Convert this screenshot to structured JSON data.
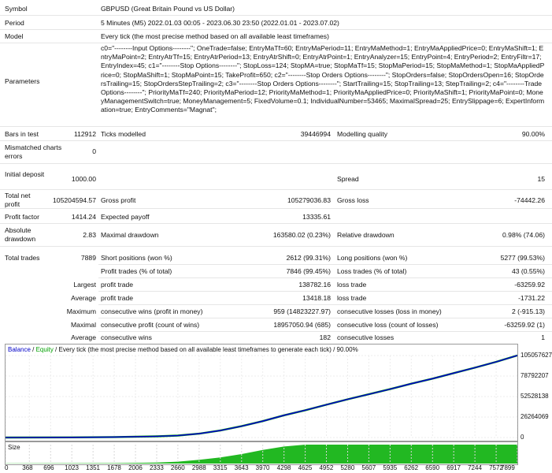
{
  "summary": {
    "symbol_label": "Symbol",
    "symbol_value": "GBPUSD (Great Britain Pound vs US Dollar)",
    "period_label": "Period",
    "period_value": "5 Minutes (M5) 2022.01.03 00:05 - 2023.06.30 23:50 (2022.01.01 - 2023.07.02)",
    "model_label": "Model",
    "model_value": "Every tick (the most precise method based on all available least timeframes)",
    "parameters_label": "Parameters",
    "parameters_value": "c0=\"--------Input Options--------\"; OneTrade=false; EntryMaTf=60; EntryMaPeriod=11; EntryMaMethod=1; EntryMaAppliedPrice=0; EntryMaShift=1; EntryMaPoint=2; EntryAtrTf=15; EntryAtrPeriod=13; EntryAtrShift=0; EntryAtrPoint=1; EntryAnalyzer=15; EntryPoint=4; EntryPeriod=2; EntryFiltr=17; EntryIndex=45; c1=\"--------Stop Options--------\"; StopLoss=124; StopMA=true; StopMaTf=15; StopMaPeriod=15; StopMaMethod=1; StopMaAppliedPrice=0; StopMaShift=1; StopMaPoint=15; TakeProfit=650; c2=\"--------Stop Orders Options--------\"; StopOrders=false; StopOrdersOpen=16; StopOrdersTrailing=15; StopOrdersStepTrailing=2; c3=\"--------Stop Orders Options--------\"; StartTrailing=15; StopTrailing=13; StepTrailing=2; c4=\"--------Trade Options--------\"; PriorityMaTf=240; PriorityMaPeriod=12; PriorityMaMethod=1; PriorityMaAppliedPrice=0; PriorityMaShift=1; PriorityMaPoint=0; MoneyManagementSwitch=true; MoneyManagement=5; FixedVolume=0.1; IndividualNumber=53465; MaximalSpread=25; EntrySlippage=6; ExpertInformation=true; EntryComments=\"Magnat\";"
  },
  "stats": {
    "bars_label": "Bars in test",
    "bars_value": "112912",
    "ticks_label": "Ticks modelled",
    "ticks_value": "39446994",
    "quality_label": "Modelling quality",
    "quality_value": "90.00%",
    "mismatch_label": "Mismatched charts errors",
    "mismatch_value": "0",
    "deposit_label": "Initial deposit",
    "deposit_value": "1000.00",
    "spread_label": "Spread",
    "spread_value": "15",
    "netprofit_label": "Total net profit",
    "netprofit_value": "105204594.57",
    "grossprofit_label": "Gross profit",
    "grossprofit_value": "105279036.83",
    "grossloss_label": "Gross loss",
    "grossloss_value": "-74442.26",
    "pf_label": "Profit factor",
    "pf_value": "1414.24",
    "payoff_label": "Expected payoff",
    "payoff_value": "13335.61",
    "absdd_label": "Absolute drawdown",
    "absdd_value": "2.83",
    "maxdd_label": "Maximal drawdown",
    "maxdd_value": "163580.02 (0.23%)",
    "reldd_label": "Relative drawdown",
    "reldd_value": "0.98% (74.06)",
    "trades_label": "Total trades",
    "trades_value": "7889",
    "short_label": "Short positions (won %)",
    "short_value": "2612 (99.31%)",
    "long_label": "Long positions (won %)",
    "long_value": "5277 (99.53%)",
    "profittrades_label": "Profit trades (% of total)",
    "profittrades_value": "7846 (99.45%)",
    "losstrades_label": "Loss trades (% of total)",
    "losstrades_value": "43 (0.55%)",
    "largest_label": "Largest",
    "largest_profit_label": "profit trade",
    "largest_profit_value": "138782.16",
    "largest_loss_label": "loss trade",
    "largest_loss_value": "-63259.92",
    "average_label": "Average",
    "average_profit_label": "profit trade",
    "average_profit_value": "13418.18",
    "average_loss_label": "loss trade",
    "average_loss_value": "-1731.22",
    "maximum_label": "Maximum",
    "maxwins_label": "consecutive wins (profit in money)",
    "maxwins_value": "959 (14823227.97)",
    "maxlosses_label": "consecutive losses (loss in money)",
    "maxlosses_value": "2 (-915.13)",
    "maximal_label": "Maximal",
    "maxprofit_label": "consecutive profit (count of wins)",
    "maxprofit_value": "18957050.94 (685)",
    "maxloss_label": "consecutive loss (count of losses)",
    "maxloss_value": "-63259.92 (1)",
    "avg2_label": "Average",
    "avgwins_label": "consecutive wins",
    "avgwins_value": "182",
    "avglosses_label": "consecutive losses",
    "avglosses_value": "1"
  },
  "chart": {
    "legend_balance": "Balance",
    "legend_sep1": " / ",
    "legend_equity": "Equity",
    "legend_rest": " / Every tick (the most precise method based on all available least timeframes to generate each tick) / 90.00%",
    "balance_color": "#0000c8",
    "equity_color": "#00a000",
    "size_label": "Size",
    "size_color": "#22b822",
    "yticks": [
      "105057627",
      "78792207",
      "52528138",
      "26264069",
      "0"
    ],
    "xticks": [
      "0",
      "368",
      "696",
      "1023",
      "1351",
      "1678",
      "2006",
      "2333",
      "2660",
      "2988",
      "3315",
      "3643",
      "3970",
      "4298",
      "4625",
      "4952",
      "5280",
      "5607",
      "5935",
      "6262",
      "6590",
      "6917",
      "7244",
      "7572",
      "7899"
    ],
    "chart_data": {
      "type": "line",
      "y_axis_ticks": [
        0,
        26264069,
        52528138,
        78792207,
        105057627
      ],
      "x_axis_ticks": [
        0,
        368,
        696,
        1023,
        1351,
        1678,
        2006,
        2333,
        2660,
        2988,
        3315,
        3643,
        3970,
        4298,
        4625,
        4952,
        5280,
        5607,
        5935,
        6262,
        6590,
        6917,
        7244,
        7572,
        7899
      ],
      "ylim": [
        0,
        105057627
      ],
      "xlim": [
        0,
        7899
      ],
      "series": [
        {
          "name": "Balance",
          "x": [
            0,
            1023,
            1678,
            2333,
            2660,
            2988,
            3315,
            3643,
            3970,
            4298,
            4625,
            4952,
            5280,
            5607,
            5935,
            6262,
            6590,
            6917,
            7244,
            7572,
            7899
          ],
          "y": [
            1000,
            200000,
            600000,
            1500000,
            2500000,
            5000000,
            9000000,
            14500000,
            21000000,
            28500000,
            35000000,
            42000000,
            49000000,
            55500000,
            62000000,
            69000000,
            75500000,
            82500000,
            89500000,
            97000000,
            105204594
          ]
        }
      ],
      "size_bars": {
        "name": "Size",
        "x": [
          0,
          1678,
          2333,
          2660,
          2988,
          3315,
          3643,
          3970,
          4298,
          4625,
          7899
        ],
        "level": [
          0.01,
          0.02,
          0.05,
          0.1,
          0.2,
          0.32,
          0.5,
          0.72,
          0.9,
          1.0,
          1.0
        ]
      }
    }
  }
}
